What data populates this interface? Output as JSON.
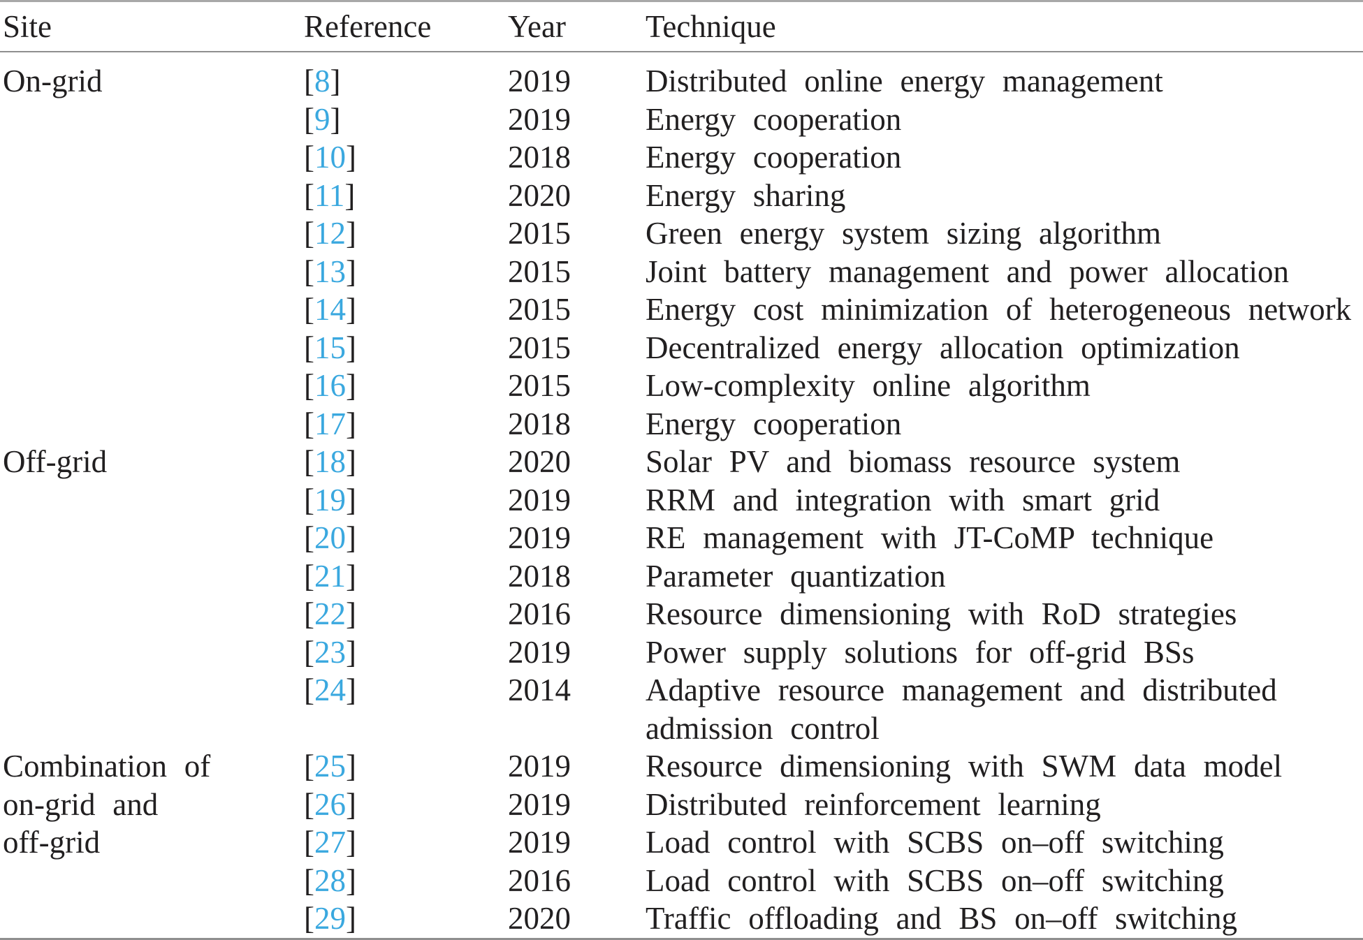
{
  "table": {
    "columns": [
      "Site",
      "Reference",
      "Year",
      "Technique"
    ],
    "ref_open": "[",
    "ref_close": "]",
    "link_color": "#3aa8df",
    "text_color": "#211f20",
    "rule_color": "#8f8f8f",
    "sections": [
      {
        "site": "On-grid",
        "rows": [
          {
            "ref": "8",
            "year": "2019",
            "technique": "Distributed online energy management"
          },
          {
            "ref": "9",
            "year": "2019",
            "technique": "Energy cooperation"
          },
          {
            "ref": "10",
            "year": "2018",
            "technique": "Energy cooperation"
          },
          {
            "ref": "11",
            "year": "2020",
            "technique": "Energy sharing"
          },
          {
            "ref": "12",
            "year": "2015",
            "technique": "Green energy system sizing algorithm"
          },
          {
            "ref": "13",
            "year": "2015",
            "technique": "Joint battery management and power allocation"
          },
          {
            "ref": "14",
            "year": "2015",
            "technique": "Energy cost minimization of heterogeneous network"
          },
          {
            "ref": "15",
            "year": "2015",
            "technique": "Decentralized energy allocation optimization"
          },
          {
            "ref": "16",
            "year": "2015",
            "technique": "Low-complexity online algorithm"
          },
          {
            "ref": "17",
            "year": "2018",
            "technique": "Energy cooperation"
          }
        ]
      },
      {
        "site": "Off-grid",
        "rows": [
          {
            "ref": "18",
            "year": "2020",
            "technique": "Solar PV and biomass resource system"
          },
          {
            "ref": "19",
            "year": "2019",
            "technique": "RRM and integration with smart grid"
          },
          {
            "ref": "20",
            "year": "2019",
            "technique": "RE management with JT-CoMP technique"
          },
          {
            "ref": "21",
            "year": "2018",
            "technique": "Parameter quantization"
          },
          {
            "ref": "22",
            "year": "2016",
            "technique": "Resource dimensioning with RoD strategies"
          },
          {
            "ref": "23",
            "year": "2019",
            "technique": "Power supply solutions for off-grid BSs"
          },
          {
            "ref": "24",
            "year": "2014",
            "technique": "Adaptive resource management and distributed\nadmission control"
          }
        ]
      },
      {
        "site": "Combination of\non-grid and\noff-grid",
        "rows": [
          {
            "ref": "25",
            "year": "2019",
            "technique": "Resource dimensioning with SWM data model"
          },
          {
            "ref": "26",
            "year": "2019",
            "technique": "Distributed reinforcement learning"
          },
          {
            "ref": "27",
            "year": "2019",
            "technique": "Load control with SCBS on–off switching"
          },
          {
            "ref": "28",
            "year": "2016",
            "technique": "Load control with SCBS on–off switching"
          },
          {
            "ref": "29",
            "year": "2020",
            "technique": "Traffic offloading and BS on–off switching"
          }
        ]
      }
    ]
  }
}
